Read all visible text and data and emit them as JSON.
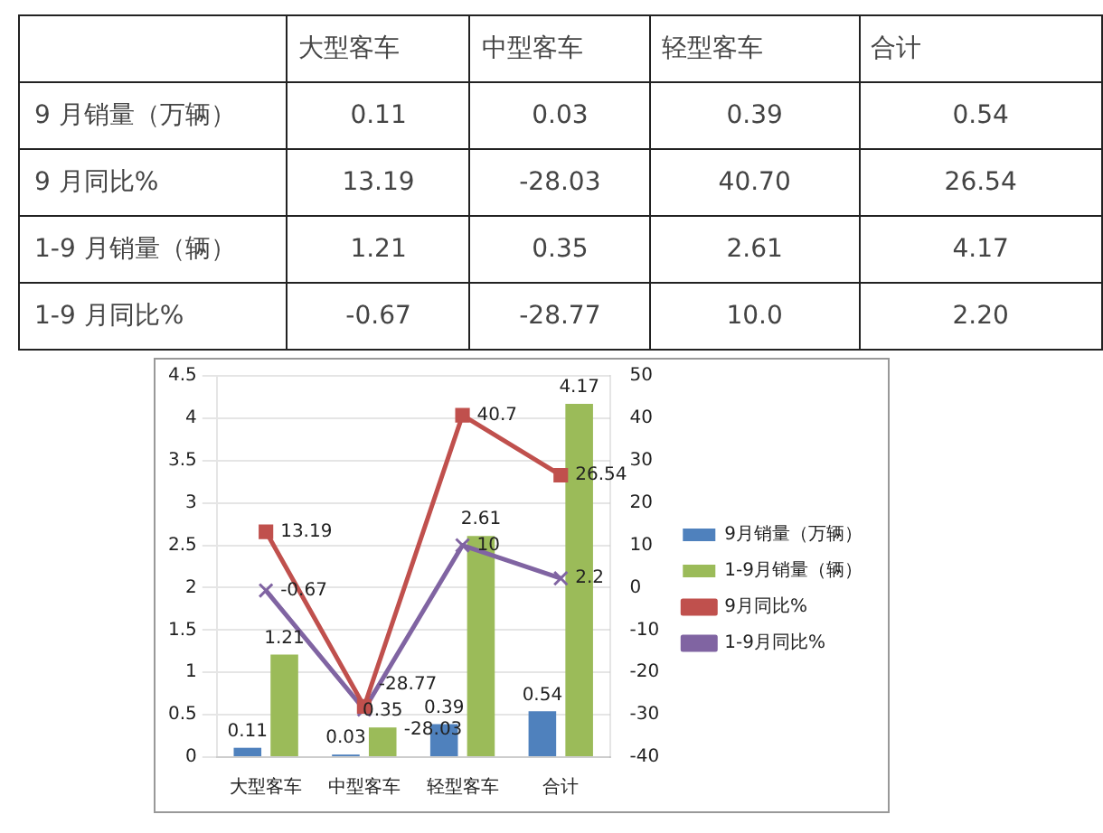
{
  "chart_data": [
    {
      "type": "other",
      "categories": [
        "大型客车",
        "中型客车",
        "轻型客车",
        "合计"
      ],
      "series": [
        {
          "name": "9 月销量（万辆）",
          "values": [
            0.11,
            0.03,
            0.39,
            0.54
          ],
          "value_labels": [
            "0.11",
            "0.03",
            "0.39",
            "0.54"
          ]
        },
        {
          "name": "9 月同比%",
          "values": [
            13.19,
            -28.03,
            40.7,
            26.54
          ],
          "value_labels": [
            "13.19",
            "-28.03",
            "40.70",
            "26.54"
          ]
        },
        {
          "name": "1-9 月销量（辆）",
          "values": [
            1.21,
            0.35,
            2.61,
            4.17
          ],
          "value_labels": [
            "1.21",
            "0.35",
            "2.61",
            "4.17"
          ]
        },
        {
          "name": "1-9 月同比%",
          "values": [
            -0.67,
            -28.77,
            10,
            2.2
          ],
          "value_labels": [
            "-0.67",
            "-28.77",
            "10.0",
            "2.20"
          ]
        }
      ]
    },
    {
      "type": "bar",
      "categories": [
        "大型客车",
        "中型客车",
        "轻型客车",
        "合计"
      ],
      "series": [
        {
          "name": "9月销量（万辆）",
          "color": "#4f81bd",
          "values": [
            0.11,
            0.03,
            0.39,
            0.54
          ]
        },
        {
          "name": "1-9月销量（辆）",
          "color": "#9bbb59",
          "values": [
            1.21,
            0.35,
            2.61,
            4.17
          ]
        },
        {
          "name": "9月同比%",
          "type": "line",
          "axis": "y2",
          "marker": "square",
          "color": "#c0504d",
          "values": [
            13.19,
            -28.03,
            40.7,
            26.54
          ]
        },
        {
          "name": "1-9月同比%",
          "type": "line",
          "axis": "y2",
          "marker": "cross",
          "color": "#8064a2",
          "values": [
            -0.67,
            -28.77,
            10,
            2.2
          ]
        }
      ],
      "ylim": [
        0,
        4.5
      ],
      "yticks": [
        0,
        0.5,
        1,
        1.5,
        2,
        2.5,
        3,
        3.5,
        4,
        4.5
      ],
      "y2lim": [
        -40,
        50
      ],
      "y2ticks": [
        -40,
        -30,
        -20,
        -10,
        0,
        10,
        20,
        30,
        40,
        50
      ],
      "grid": "y",
      "legend": "right",
      "data_labels": true
    }
  ]
}
